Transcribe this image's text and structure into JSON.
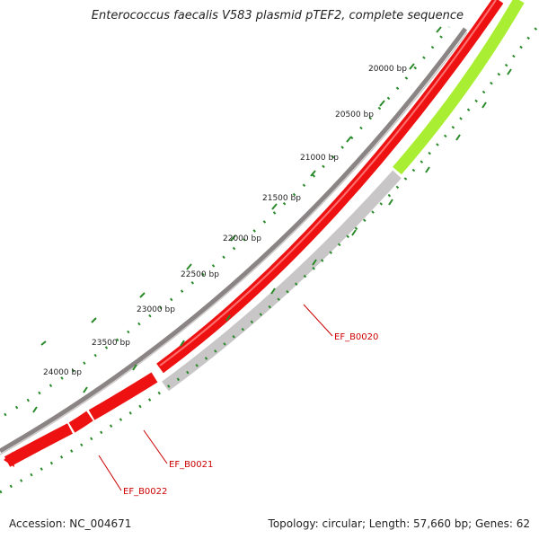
{
  "title": "Enterococcus faecalis V583 plasmid pTEF2, complete sequence",
  "accession_text": "Accession: NC_004671",
  "summary_text": "Topology: circular; Length: 57,660 bp; Genes: 62",
  "ruler_labels": [
    "20000 bp",
    "20500 bp",
    "21000 bp",
    "21500 bp",
    "22000 bp",
    "22500 bp",
    "23000 bp",
    "23500 bp",
    "24000 bp"
  ],
  "gene_labels": [
    "EF_B0020",
    "EF_B0021",
    "EF_B0022"
  ],
  "colors": {
    "backbone": "#8a8484",
    "gene_forward": "#ee1111",
    "gene_reverse_grey": "#c8c6c6",
    "gene_other_green": "#aaee33",
    "tick": "#2a8a2a",
    "label_red": "#cc0000"
  }
}
